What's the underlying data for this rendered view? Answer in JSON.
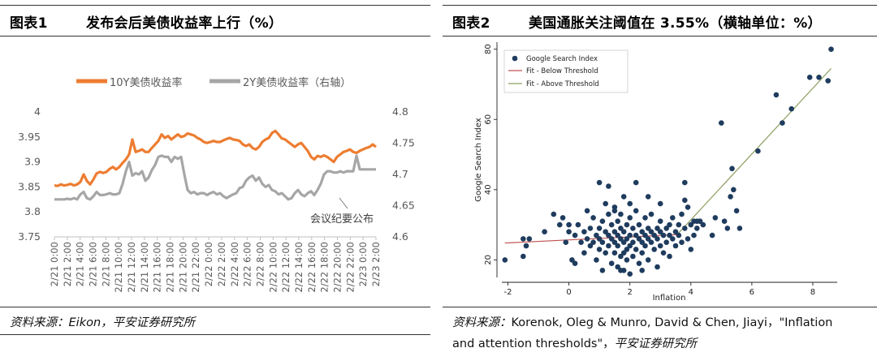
{
  "figures": [
    {
      "number": "图表1",
      "title": "发布会后美债收益率上行（%）",
      "source_label": "资料来源：",
      "source_text": "Eikon，平安证券研究所"
    },
    {
      "number": "图表2",
      "title": "美国通胀关注阈值在 3.55%（横轴单位：%）",
      "source_label": "资料来源：",
      "source_text": "Korenok, Oleg & Munro, David & Chen, Jiayi，\"Inflation",
      "source_text2": "and attention thresholds\"，",
      "source_text3": "平安证券研究所"
    }
  ],
  "chart_data": [
    {
      "type": "line",
      "series": [
        {
          "name": "10Y美债收益率",
          "axis": "left",
          "color": "#ED7D31",
          "values": [
            3.853,
            3.852,
            3.855,
            3.853,
            3.854,
            3.856,
            3.853,
            3.855,
            3.86,
            3.875,
            3.862,
            3.855,
            3.865,
            3.877,
            3.88,
            3.878,
            3.88,
            3.886,
            3.89,
            3.885,
            3.89,
            3.898,
            3.905,
            3.915,
            3.945,
            3.92,
            3.922,
            3.925,
            3.92,
            3.92,
            3.928,
            3.935,
            3.942,
            3.955,
            3.948,
            3.952,
            3.945,
            3.95,
            3.955,
            3.95,
            3.952,
            3.957,
            3.955,
            3.953,
            3.948,
            3.945,
            3.94,
            3.938,
            3.94,
            3.942,
            3.94,
            3.94,
            3.943,
            3.946,
            3.948,
            3.945,
            3.944,
            3.942,
            3.935,
            3.932,
            3.935,
            3.928,
            3.925,
            3.93,
            3.94,
            3.945,
            3.948,
            3.958,
            3.962,
            3.955,
            3.947,
            3.945,
            3.94,
            3.935,
            3.93,
            3.935,
            3.938,
            3.93,
            3.922,
            3.91,
            3.905,
            3.912,
            3.91,
            3.913,
            3.91,
            3.905,
            3.9,
            3.91,
            3.915,
            3.92,
            3.922,
            3.925,
            3.92,
            3.918,
            3.922,
            3.925,
            3.928,
            3.93,
            3.935,
            3.93
          ]
        },
        {
          "name": "2Y美债收益率（右轴）",
          "axis": "right",
          "color": "#A6A6A6",
          "values": [
            4.66,
            4.66,
            4.66,
            4.66,
            4.661,
            4.66,
            4.662,
            4.66,
            4.668,
            4.672,
            4.662,
            4.66,
            4.665,
            4.672,
            4.667,
            4.667,
            4.668,
            4.67,
            4.668,
            4.668,
            4.67,
            4.685,
            4.705,
            4.72,
            4.698,
            4.702,
            4.7,
            4.705,
            4.69,
            4.695,
            4.707,
            4.715,
            4.728,
            4.73,
            4.728,
            4.728,
            4.72,
            4.728,
            4.725,
            4.728,
            4.7,
            4.675,
            4.67,
            4.672,
            4.668,
            4.67,
            4.67,
            4.667,
            4.67,
            4.672,
            4.668,
            4.67,
            4.665,
            4.662,
            4.665,
            4.668,
            4.67,
            4.678,
            4.68,
            4.69,
            4.695,
            4.698,
            4.69,
            4.695,
            4.685,
            4.68,
            4.683,
            4.675,
            4.673,
            4.668,
            4.67,
            4.665,
            4.66,
            4.662,
            4.67,
            4.675,
            4.668,
            4.665,
            4.67,
            4.673,
            4.667,
            4.675,
            4.685,
            4.7,
            4.705,
            4.705,
            4.703,
            4.703,
            4.705,
            4.703,
            4.705,
            4.705,
            4.705,
            4.73,
            4.708,
            4.708,
            4.708,
            4.708,
            4.708,
            4.708
          ]
        }
      ],
      "xticks": [
        "2/21 0:00",
        "2/21 2:00",
        "2/21 4:00",
        "2/21 6:00",
        "2/21 8:00",
        "2/21 10:00",
        "2/21 12:00",
        "2/21 14:00",
        "2/21 16:00",
        "2/21 18:00",
        "2/21 20:00",
        "2/21 22:00",
        "2/22 0:00",
        "2/22 2:00",
        "2/22 4:00",
        "2/22 6:00",
        "2/22 8:00",
        "2/22 10:00",
        "2/22 12:00",
        "2/22 14:00",
        "2/22 16:00",
        "2/22 18:00",
        "2/22 20:00",
        "2/22 22:00",
        "2/23 0:00",
        "2/23 2:00"
      ],
      "ylim_left": [
        3.75,
        4.0
      ],
      "yticks_left": [
        "3.75",
        "3.8",
        "3.85",
        "3.9",
        "3.95",
        "4"
      ],
      "ylim_right": [
        4.6,
        4.8
      ],
      "yticks_right": [
        "4.6",
        "4.65",
        "4.7",
        "4.75",
        "4.8"
      ],
      "annotation": "会议纪要公布",
      "legend_position": "top",
      "grid": false
    },
    {
      "type": "scatter",
      "xlabel": "Inflation",
      "ylabel": "Google Search Index",
      "xlim": [
        -2.2,
        8.8
      ],
      "ylim": [
        15,
        82
      ],
      "xticks": [
        -2,
        0,
        2,
        4,
        6,
        8
      ],
      "yticks": [
        20,
        40,
        60,
        80
      ],
      "legend": [
        "Google Search Index",
        "Fit - Below Threshold",
        "Fit - Above Threshold"
      ],
      "legend_position": "top-left",
      "colors": {
        "points": "#1F3C5E",
        "fit_below": "#C0504D",
        "fit_above": "#8DA060"
      },
      "fit_below": {
        "x": [
          -2.1,
          3.55
        ],
        "y": [
          24.8,
          27.2
        ]
      },
      "fit_above": {
        "x": [
          3.55,
          8.6
        ],
        "y": [
          27.2,
          74.5
        ]
      },
      "points": [
        [
          -2.1,
          20
        ],
        [
          -1.5,
          21
        ],
        [
          -1.5,
          26
        ],
        [
          -1.4,
          24
        ],
        [
          -1.3,
          26
        ],
        [
          -0.8,
          28
        ],
        [
          -0.5,
          33
        ],
        [
          -0.3,
          30
        ],
        [
          -0.2,
          32
        ],
        [
          -0.1,
          25
        ],
        [
          0,
          30
        ],
        [
          0,
          28
        ],
        [
          0.1,
          20
        ],
        [
          0.2,
          19
        ],
        [
          0.2,
          27
        ],
        [
          0.3,
          30
        ],
        [
          0.4,
          25
        ],
        [
          0.5,
          22
        ],
        [
          0.5,
          28
        ],
        [
          0.6,
          26
        ],
        [
          0.7,
          24
        ],
        [
          0.7,
          29
        ],
        [
          0.8,
          25
        ],
        [
          0.8,
          32
        ],
        [
          0.9,
          20
        ],
        [
          0.9,
          27
        ],
        [
          1,
          23
        ],
        [
          1,
          29
        ],
        [
          1,
          26
        ],
        [
          1.1,
          25
        ],
        [
          1.1,
          31
        ],
        [
          1.1,
          17
        ],
        [
          1.2,
          28
        ],
        [
          1.2,
          22
        ],
        [
          1.2,
          36
        ],
        [
          1.3,
          24
        ],
        [
          1.3,
          27
        ],
        [
          1.3,
          33
        ],
        [
          1.4,
          19
        ],
        [
          1.4,
          26
        ],
        [
          1.4,
          30
        ],
        [
          1.5,
          25
        ],
        [
          1.5,
          22
        ],
        [
          1.5,
          28
        ],
        [
          1.5,
          35
        ],
        [
          1.6,
          24
        ],
        [
          1.6,
          27
        ],
        [
          1.6,
          31
        ],
        [
          1.6,
          18
        ],
        [
          1.7,
          26
        ],
        [
          1.7,
          21
        ],
        [
          1.7,
          29
        ],
        [
          1.7,
          33
        ],
        [
          1.8,
          25
        ],
        [
          1.8,
          28
        ],
        [
          1.8,
          17
        ],
        [
          1.8,
          38
        ],
        [
          1.9,
          26
        ],
        [
          1.9,
          23
        ],
        [
          1.9,
          30
        ],
        [
          1.9,
          20
        ],
        [
          2,
          27
        ],
        [
          2,
          24
        ],
        [
          2,
          32
        ],
        [
          2,
          36
        ],
        [
          2,
          16
        ],
        [
          2.1,
          25
        ],
        [
          2.1,
          29
        ],
        [
          2.1,
          21
        ],
        [
          2.2,
          27
        ],
        [
          2.2,
          34
        ],
        [
          2.2,
          23
        ],
        [
          2.3,
          26
        ],
        [
          2.3,
          30
        ],
        [
          2.3,
          19
        ],
        [
          2.4,
          25
        ],
        [
          2.4,
          28
        ],
        [
          2.4,
          22
        ],
        [
          2.5,
          27
        ],
        [
          2.5,
          32
        ],
        [
          2.5,
          24
        ],
        [
          2.6,
          26
        ],
        [
          2.6,
          29
        ],
        [
          2.6,
          20
        ],
        [
          2.7,
          28
        ],
        [
          2.7,
          25
        ],
        [
          2.7,
          33
        ],
        [
          2.8,
          27
        ],
        [
          2.8,
          23
        ],
        [
          2.9,
          29
        ],
        [
          2.9,
          26
        ],
        [
          3,
          28
        ],
        [
          3,
          24
        ],
        [
          3,
          31
        ],
        [
          3.1,
          27
        ],
        [
          3.1,
          22
        ],
        [
          3.2,
          29
        ],
        [
          3.2,
          25
        ],
        [
          3.3,
          30
        ],
        [
          3.3,
          27
        ],
        [
          3.4,
          26
        ],
        [
          3.4,
          32
        ],
        [
          3.5,
          28
        ],
        [
          3.5,
          24
        ],
        [
          3.6,
          30
        ],
        [
          3.6,
          27
        ],
        [
          3.7,
          25
        ],
        [
          3.7,
          33
        ],
        [
          3.8,
          29
        ],
        [
          3.8,
          37
        ],
        [
          3.9,
          35
        ],
        [
          3.9,
          26
        ],
        [
          4,
          30
        ],
        [
          4,
          23
        ],
        [
          4.1,
          27
        ],
        [
          4.1,
          31
        ],
        [
          4.2,
          29
        ],
        [
          4.3,
          31
        ],
        [
          4.4,
          30
        ],
        [
          4.7,
          27
        ],
        [
          4.8,
          32
        ],
        [
          5,
          59
        ],
        [
          5.1,
          31
        ],
        [
          5.2,
          29
        ],
        [
          5.3,
          38
        ],
        [
          5.35,
          46
        ],
        [
          5.4,
          40
        ],
        [
          5.5,
          34
        ],
        [
          5.6,
          29
        ],
        [
          6.2,
          51
        ],
        [
          6.8,
          67
        ],
        [
          7,
          59
        ],
        [
          7.3,
          63
        ],
        [
          7.9,
          72
        ],
        [
          8.2,
          72
        ],
        [
          8.5,
          71
        ],
        [
          8.6,
          80
        ],
        [
          1.0,
          42
        ],
        [
          1.3,
          41
        ],
        [
          2.2,
          42
        ],
        [
          3.8,
          42
        ],
        [
          4.2,
          31
        ],
        [
          3.0,
          36
        ],
        [
          2.6,
          38
        ],
        [
          1.5,
          34
        ],
        [
          0.6,
          34
        ],
        [
          2.9,
          18
        ],
        [
          3.3,
          21
        ],
        [
          1.8,
          22
        ],
        [
          2.4,
          17
        ],
        [
          1.7,
          17
        ],
        [
          4.3,
          31
        ]
      ]
    }
  ]
}
